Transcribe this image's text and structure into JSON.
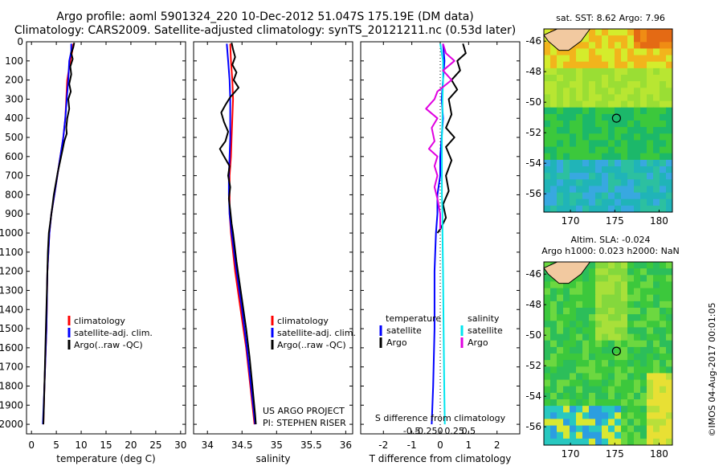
{
  "title": {
    "line1": "Argo profile: aoml 5901324_220 10-Dec-2012 51.047S 175.19E (DM data)",
    "line2": "Climatology: CARS2009. Satellite-adjusted climatology: synTS_20121211.nc (0.53d later)"
  },
  "colors": {
    "climatology": "#ff0000",
    "satellite": "#0000ff",
    "argo": "#000000",
    "salinity_satellite": "#00e5ee",
    "salinity_argo": "#e000e0",
    "land": "#f2c9a0"
  },
  "depth_axis": {
    "ylim": [
      0,
      2050
    ],
    "ticks": [
      0,
      100,
      200,
      300,
      400,
      500,
      600,
      700,
      800,
      900,
      1000,
      1100,
      1200,
      1300,
      1400,
      1500,
      1600,
      1700,
      1800,
      1900,
      2000
    ]
  },
  "project": {
    "line1": "US ARGO PROJECT",
    "line2": "PI: STEPHEN RISER"
  },
  "chart_data": [
    {
      "type": "line",
      "id": "temperature",
      "xlabel": "temperature (deg C)",
      "xlim": [
        -1,
        31
      ],
      "xticks": [
        0,
        5,
        10,
        15,
        20,
        25,
        30
      ],
      "legend": [
        "climatology",
        "satellite-adj. clim.",
        "Argo(..raw -QC)"
      ],
      "series": [
        {
          "name": "climatology",
          "color_key": "climatology",
          "points": [
            [
              8.4,
              10
            ],
            [
              8.2,
              50
            ],
            [
              7.8,
              100
            ],
            [
              7.2,
              200
            ],
            [
              7.0,
              300
            ],
            [
              6.8,
              400
            ],
            [
              6.4,
              500
            ],
            [
              5.8,
              600
            ],
            [
              5.2,
              700
            ],
            [
              4.6,
              800
            ],
            [
              4.0,
              900
            ],
            [
              3.6,
              1000
            ],
            [
              3.2,
              1200
            ],
            [
              3.0,
              1500
            ],
            [
              2.6,
              1800
            ],
            [
              2.4,
              2000
            ]
          ]
        },
        {
          "name": "satellite-adj. clim.",
          "color_key": "satellite",
          "points": [
            [
              8.0,
              10
            ],
            [
              8.0,
              50
            ],
            [
              7.6,
              100
            ],
            [
              7.4,
              200
            ],
            [
              7.1,
              300
            ],
            [
              6.8,
              400
            ],
            [
              6.4,
              500
            ],
            [
              5.8,
              600
            ],
            [
              5.2,
              700
            ],
            [
              4.6,
              800
            ],
            [
              4.0,
              900
            ],
            [
              3.6,
              1000
            ],
            [
              3.2,
              1200
            ],
            [
              3.0,
              1500
            ],
            [
              2.6,
              1800
            ],
            [
              2.3,
              2000
            ]
          ]
        },
        {
          "name": "Argo(..raw -QC)",
          "color_key": "argo",
          "points": [
            [
              8.6,
              5
            ],
            [
              8.4,
              30
            ],
            [
              8.0,
              60
            ],
            [
              8.3,
              90
            ],
            [
              7.8,
              130
            ],
            [
              8.0,
              170
            ],
            [
              7.6,
              220
            ],
            [
              7.9,
              260
            ],
            [
              7.4,
              300
            ],
            [
              7.6,
              350
            ],
            [
              7.2,
              400
            ],
            [
              7.0,
              450
            ],
            [
              7.1,
              480
            ],
            [
              6.6,
              520
            ],
            [
              6.2,
              570
            ],
            [
              5.8,
              620
            ],
            [
              5.3,
              680
            ],
            [
              4.9,
              740
            ],
            [
              4.5,
              800
            ],
            [
              4.1,
              880
            ],
            [
              3.7,
              960
            ],
            [
              3.5,
              1000
            ],
            [
              3.3,
              1100
            ],
            [
              3.1,
              1300
            ],
            [
              2.9,
              1500
            ],
            [
              2.7,
              1700
            ],
            [
              2.5,
              1900
            ],
            [
              2.4,
              2000
            ]
          ]
        }
      ]
    },
    {
      "type": "line",
      "id": "salinity",
      "xlabel": "salinity",
      "xlim": [
        33.8,
        36.1
      ],
      "xticks": [
        34,
        34.5,
        35,
        35.5,
        36
      ],
      "legend": [
        "climatology",
        "satellite-adj. clim.",
        "Argo(..raw -QC)"
      ],
      "series": [
        {
          "name": "climatology",
          "color_key": "climatology",
          "points": [
            [
              34.33,
              10
            ],
            [
              34.34,
              100
            ],
            [
              34.36,
              200
            ],
            [
              34.37,
              300
            ],
            [
              34.36,
              400
            ],
            [
              34.35,
              500
            ],
            [
              34.34,
              600
            ],
            [
              34.32,
              700
            ],
            [
              34.32,
              800
            ],
            [
              34.32,
              900
            ],
            [
              34.34,
              1000
            ],
            [
              34.4,
              1200
            ],
            [
              34.48,
              1400
            ],
            [
              34.56,
              1600
            ],
            [
              34.62,
              1800
            ],
            [
              34.68,
              2000
            ]
          ]
        },
        {
          "name": "satellite-adj. clim.",
          "color_key": "satellite",
          "points": [
            [
              34.28,
              10
            ],
            [
              34.3,
              100
            ],
            [
              34.32,
              200
            ],
            [
              34.33,
              300
            ],
            [
              34.33,
              400
            ],
            [
              34.33,
              500
            ],
            [
              34.32,
              600
            ],
            [
              34.31,
              700
            ],
            [
              34.31,
              800
            ],
            [
              34.32,
              900
            ],
            [
              34.35,
              1000
            ],
            [
              34.42,
              1200
            ],
            [
              34.5,
              1400
            ],
            [
              34.57,
              1600
            ],
            [
              34.63,
              1800
            ],
            [
              34.69,
              2000
            ]
          ]
        },
        {
          "name": "Argo(..raw -QC)",
          "color_key": "argo",
          "points": [
            [
              34.35,
              5
            ],
            [
              34.37,
              40
            ],
            [
              34.4,
              80
            ],
            [
              34.36,
              120
            ],
            [
              34.42,
              160
            ],
            [
              34.38,
              200
            ],
            [
              34.45,
              240
            ],
            [
              34.33,
              290
            ],
            [
              34.26,
              330
            ],
            [
              34.2,
              370
            ],
            [
              34.24,
              420
            ],
            [
              34.3,
              470
            ],
            [
              34.26,
              520
            ],
            [
              34.18,
              560
            ],
            [
              34.24,
              600
            ],
            [
              34.32,
              650
            ],
            [
              34.3,
              700
            ],
            [
              34.33,
              760
            ],
            [
              34.31,
              820
            ],
            [
              34.33,
              880
            ],
            [
              34.35,
              950
            ],
            [
              34.37,
              1000
            ],
            [
              34.42,
              1150
            ],
            [
              34.5,
              1350
            ],
            [
              34.56,
              1500
            ],
            [
              34.61,
              1650
            ],
            [
              34.65,
              1800
            ],
            [
              34.69,
              1950
            ],
            [
              34.7,
              2000
            ]
          ]
        }
      ]
    },
    {
      "type": "line",
      "id": "difference",
      "xlabel": "T difference from climatology",
      "xlabel2": "S difference from climatology",
      "xlim": [
        -2.8,
        2.8
      ],
      "xticks": [
        -2,
        -1,
        0,
        1,
        2
      ],
      "sticks": [
        -0.5,
        -0.25,
        0,
        0.25,
        0.5
      ],
      "legend_groups": [
        {
          "title": "temperature",
          "items": [
            "satellite",
            "Argo"
          ]
        },
        {
          "title": "salinity",
          "items": [
            "satellite",
            "Argo"
          ]
        }
      ],
      "series": [
        {
          "name": "temperature satellite",
          "color_key": "satellite",
          "points": [
            [
              0.1,
              10
            ],
            [
              0.15,
              100
            ],
            [
              0.1,
              200
            ],
            [
              0.05,
              300
            ],
            [
              0.1,
              400
            ],
            [
              0.05,
              500
            ],
            [
              0,
              600
            ],
            [
              0,
              700
            ],
            [
              -0.1,
              800
            ],
            [
              -0.1,
              900
            ],
            [
              -0.15,
              1000
            ],
            [
              -0.2,
              1200
            ],
            [
              -0.2,
              1500
            ],
            [
              -0.25,
              1800
            ],
            [
              -0.3,
              2000
            ]
          ]
        },
        {
          "name": "temperature Argo",
          "color_key": "argo",
          "points": [
            [
              0.8,
              10
            ],
            [
              0.9,
              60
            ],
            [
              0.6,
              100
            ],
            [
              0.7,
              150
            ],
            [
              0.4,
              200
            ],
            [
              0.6,
              250
            ],
            [
              0.3,
              300
            ],
            [
              0.4,
              380
            ],
            [
              0.2,
              450
            ],
            [
              0.5,
              500
            ],
            [
              0.2,
              550
            ],
            [
              0.4,
              620
            ],
            [
              0.2,
              700
            ],
            [
              0.3,
              780
            ],
            [
              0.1,
              850
            ],
            [
              0.2,
              920
            ],
            [
              0,
              980
            ],
            [
              -0.1,
              1000
            ]
          ]
        },
        {
          "name": "salinity satellite",
          "color_key": "salinity_satellite",
          "points": [
            [
              0,
              10
            ],
            [
              0.05,
              100
            ],
            [
              0.05,
              200
            ],
            [
              0.04,
              300
            ],
            [
              0.04,
              400
            ],
            [
              0.03,
              500
            ],
            [
              0.03,
              600
            ],
            [
              0.03,
              700
            ],
            [
              0.03,
              800
            ],
            [
              0.04,
              900
            ],
            [
              0.04,
              1000
            ],
            [
              0.05,
              1200
            ],
            [
              0.06,
              1500
            ],
            [
              0.07,
              1800
            ],
            [
              0.08,
              2000
            ]
          ]
        },
        {
          "name": "salinity Argo",
          "color_key": "salinity_argo",
          "points": [
            [
              0.05,
              10
            ],
            [
              0.1,
              60
            ],
            [
              0.25,
              100
            ],
            [
              0.05,
              150
            ],
            [
              0.2,
              200
            ],
            [
              -0.05,
              260
            ],
            [
              -0.1,
              300
            ],
            [
              -0.25,
              350
            ],
            [
              -0.05,
              400
            ],
            [
              -0.15,
              450
            ],
            [
              -0.1,
              520
            ],
            [
              -0.2,
              560
            ],
            [
              -0.05,
              600
            ],
            [
              -0.1,
              650
            ],
            [
              -0.05,
              700
            ],
            [
              -0.1,
              760
            ],
            [
              -0.05,
              820
            ],
            [
              0,
              900
            ],
            [
              0,
              980
            ]
          ]
        }
      ]
    },
    {
      "type": "heatmap",
      "id": "sst_map",
      "title": "sat. SST: 8.62  Argo: 7.96",
      "xlim": [
        167,
        181.5
      ],
      "ylim": [
        -57.2,
        -45.2
      ],
      "xticks": [
        170,
        175,
        180
      ],
      "yticks": [
        -46,
        -48,
        -50,
        -52,
        -54,
        -56
      ],
      "argo_position": {
        "lon": 175.19,
        "lat": -51.047
      }
    },
    {
      "type": "heatmap",
      "id": "sla_map",
      "title": "Altim. SLA: -0.024",
      "subtitle": "Argo h1000: 0.023 h2000: NaN",
      "xlim": [
        167,
        181.5
      ],
      "ylim": [
        -57.2,
        -45.2
      ],
      "xticks": [
        170,
        175,
        180
      ],
      "yticks": [
        -46,
        -48,
        -50,
        -52,
        -54,
        -56
      ],
      "argo_position": {
        "lon": 175.19,
        "lat": -51.047
      }
    }
  ],
  "credit": "©IMOS 04-Aug-2017 00:01:05"
}
